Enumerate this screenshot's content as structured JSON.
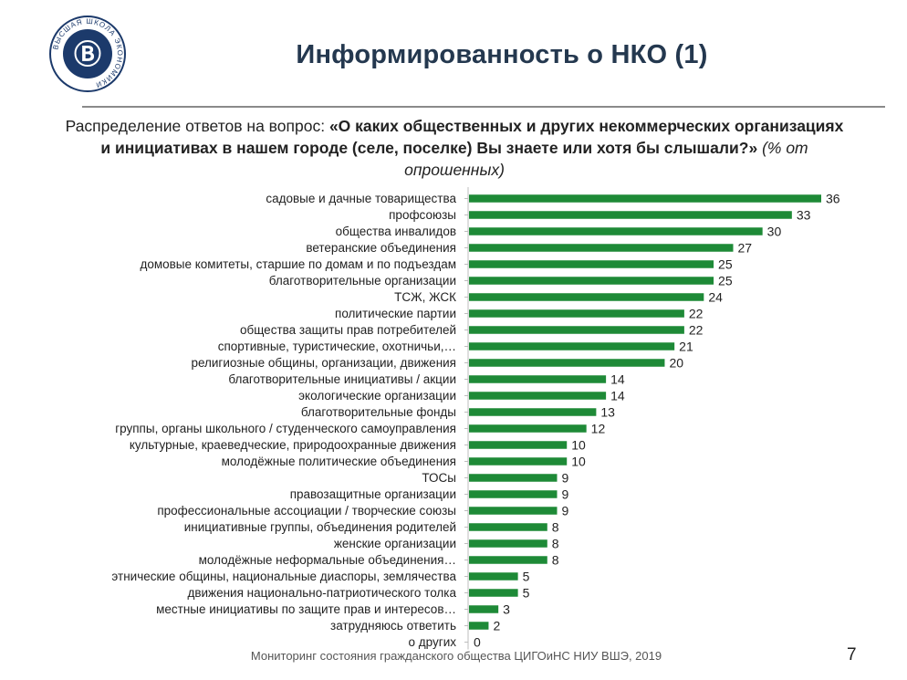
{
  "header": {
    "title": "Информированность о НКО (1)",
    "question_prefix": "Распределение ответов на вопрос:",
    "question_bold": "«О каких общественных и других некоммерческих организациях и инициативах в нашем городе (селе, поселке) Вы знаете или хотя бы слышали?»",
    "question_note": "(% от опрошенных)"
  },
  "logo": {
    "text": "ВЫСШАЯ ШКОЛА ЭКОНОМИКИ",
    "color": "#1c3a6b"
  },
  "colors": {
    "bar": "#1e8a37",
    "title": "#24384f"
  },
  "chart_data": {
    "type": "bar",
    "orientation": "horizontal",
    "categories": [
      "садовые и дачные товарищества",
      "профсоюзы",
      "общества инвалидов",
      "ветеранские объединения",
      "домовые комитеты, старшие по домам и по подъездам",
      "благотворительные организации",
      "ТСЖ, ЖСК",
      "политические партии",
      "общества защиты прав потребителей",
      "спортивные, туристические, охотничьи,…",
      "религиозные общины, организации, движения",
      "благотворительные инициативы / акции",
      "экологические организации",
      "благотворительные фонды",
      "группы, органы школьного / студенческого самоуправления",
      "культурные, краеведческие, природоохранные движения",
      "молодёжные политические объединения",
      "ТОСы",
      "правозащитные организации",
      "профессиональные ассоциации / творческие союзы",
      "инициативные группы, объединения родителей",
      "женские организации",
      "молодёжные неформальные объединения…",
      "этнические общины, национальные диаспоры, землячества",
      "движения национально-патриотического толка",
      "местные инициативы по защите прав и интересов…",
      "затрудняюсь ответить",
      "о других"
    ],
    "values": [
      36,
      33,
      30,
      27,
      25,
      25,
      24,
      22,
      22,
      21,
      20,
      14,
      14,
      13,
      12,
      10,
      10,
      9,
      9,
      9,
      8,
      8,
      8,
      5,
      5,
      3,
      2,
      0
    ],
    "xlim": [
      0,
      36
    ],
    "grid": false,
    "legend": "none"
  },
  "footer": {
    "text": "Мониторинг состояния гражданского общества ЦИГОиНС НИУ ВШЭ, 2019"
  },
  "page": {
    "number": "7"
  }
}
